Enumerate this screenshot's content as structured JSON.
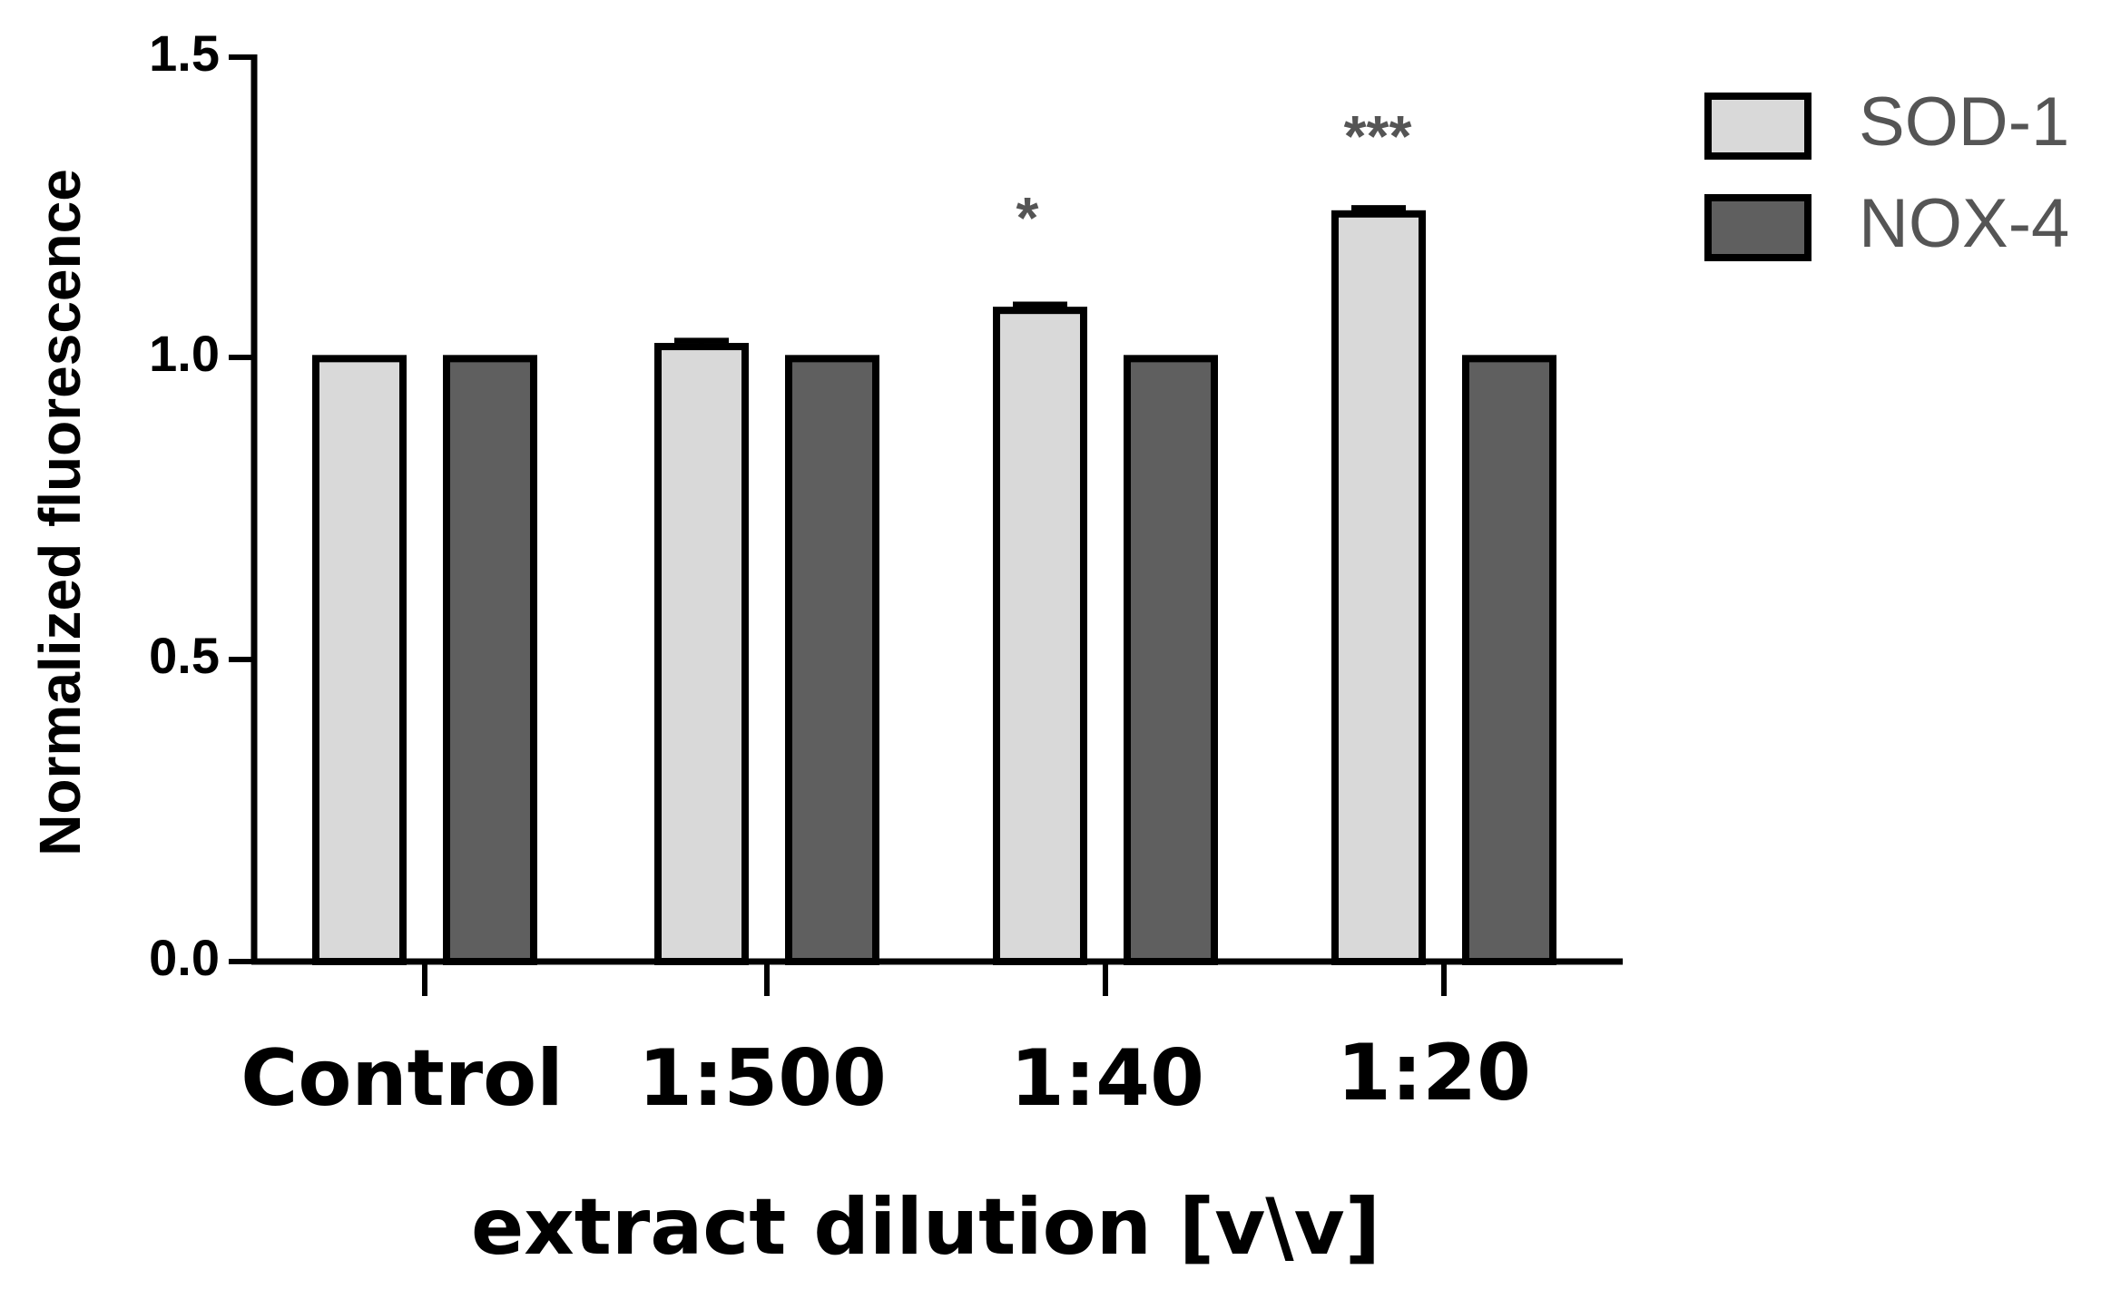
{
  "chart_data": {
    "type": "bar",
    "title": "",
    "xlabel": "extract dilution [v\\v]",
    "ylabel": "Normalized fluorescence",
    "ylim": [
      0,
      1.5
    ],
    "yticks": [
      "0.0",
      "0.5",
      "1.0",
      "1.5"
    ],
    "categories": [
      "Control",
      "1:500",
      "1:40",
      "1:20"
    ],
    "series": [
      {
        "name": "SOD-1",
        "values": [
          1.0,
          1.02,
          1.08,
          1.24
        ],
        "errors": [
          0,
          0.01,
          0.01,
          0.01
        ],
        "color": "#d9d9d9"
      },
      {
        "name": "NOX-4",
        "values": [
          1.0,
          1.0,
          1.0,
          1.0
        ],
        "errors": [
          0,
          0,
          0,
          0
        ],
        "color": "#5f5f5f"
      }
    ],
    "annotations": [
      "",
      "",
      "*",
      "***"
    ],
    "legend": "top-right",
    "grid": false
  }
}
